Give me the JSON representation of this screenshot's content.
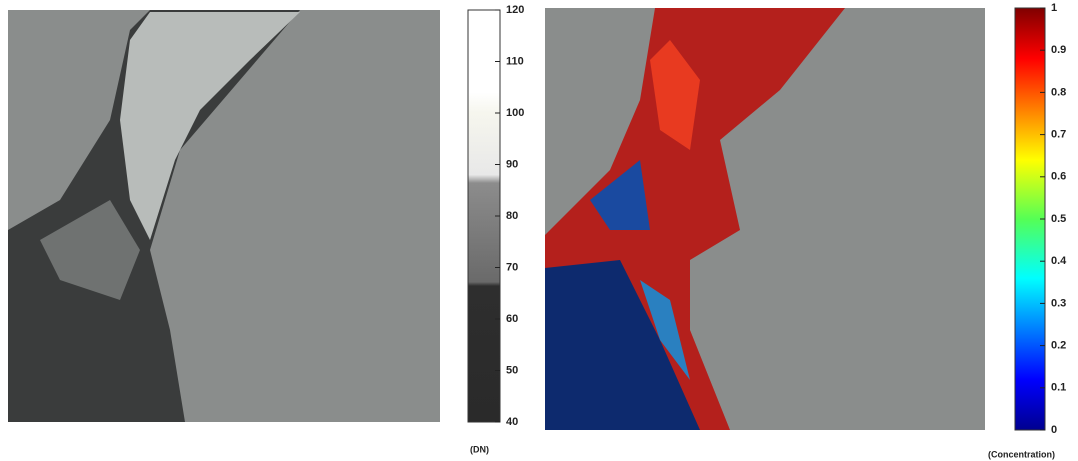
{
  "chart_data": [
    {
      "type": "image",
      "colorbar": {
        "label": "(DN)",
        "lim": [
          40,
          120
        ],
        "ticks": [
          40,
          50,
          60,
          70,
          80,
          90,
          100,
          110,
          120
        ],
        "scale": "gray"
      }
    },
    {
      "type": "image",
      "colorbar": {
        "label": "(Concentration)",
        "lim": [
          0,
          1
        ],
        "ticks": [
          0,
          0.1,
          0.2,
          0.3,
          0.4,
          0.5,
          0.6,
          0.7,
          0.8,
          0.9,
          1
        ],
        "scale": "jet"
      }
    }
  ]
}
